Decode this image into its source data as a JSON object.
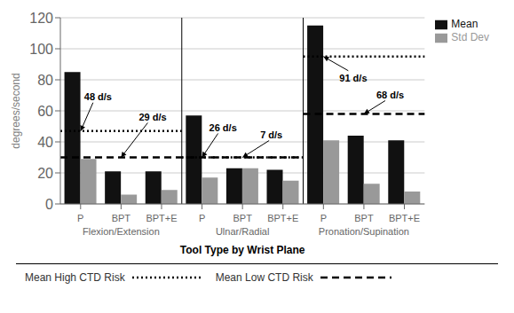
{
  "chart_data": {
    "type": "bar",
    "xlabel": "Tool Type by Wrist Plane",
    "ylabel": "degrees/second",
    "categories": [
      "P",
      "BPT",
      "BPT+E",
      "P",
      "BPT",
      "BPT+E",
      "P",
      "BPT",
      "BPT+E"
    ],
    "groups": [
      "Flexion/Extension",
      "Ulnar/Radial",
      "Pronation/Supination"
    ],
    "series": [
      {
        "name": "Mean",
        "color": "#111111",
        "values": [
          85,
          21,
          21,
          57,
          23,
          22,
          115,
          44,
          41
        ]
      },
      {
        "name": "Std Dev",
        "color": "#999999",
        "values": [
          29,
          6,
          9,
          17,
          23,
          15,
          41,
          13,
          8
        ]
      }
    ],
    "ylim": [
      0,
      120
    ],
    "yticks": [
      0,
      20,
      40,
      60,
      80,
      100,
      120
    ],
    "grid": true,
    "legend": "upper right",
    "reference_lines": [
      {
        "name": "Mean High CTD Risk",
        "line_style": "dotted",
        "lines": [
          {
            "value": 47,
            "groups": [
              "Flexion/Extension"
            ]
          },
          {
            "value": 30,
            "groups": [
              "Ulnar/Radial"
            ]
          },
          {
            "value": 95,
            "groups": [
              "Pronation/Supination"
            ]
          }
        ]
      },
      {
        "name": "Mean Low CTD Risk",
        "line_style": "dashed",
        "lines": [
          {
            "value": 30,
            "groups": [
              "Flexion/Extension",
              "Ulnar/Radial"
            ]
          },
          {
            "value": 58,
            "groups": [
              "Pronation/Supination"
            ]
          }
        ]
      }
    ],
    "annotations": [
      {
        "text": "48 d/s",
        "group": "Flexion/Extension",
        "category": "P",
        "value": 47
      },
      {
        "text": "29 d/s",
        "group": "Flexion/Extension",
        "category": "BPT",
        "value": 30
      },
      {
        "text": "26 d/s",
        "group": "Ulnar/Radial",
        "category": "P",
        "value": 30
      },
      {
        "text": "7 d/s",
        "group": "Ulnar/Radial",
        "category": "BPT",
        "value": 30
      },
      {
        "text": "91 d/s",
        "group": "Pronation/Supination",
        "category": "P",
        "value": 95
      },
      {
        "text": "68 d/s",
        "group": "Pronation/Supination",
        "category": "BPT",
        "value": 58
      }
    ]
  }
}
